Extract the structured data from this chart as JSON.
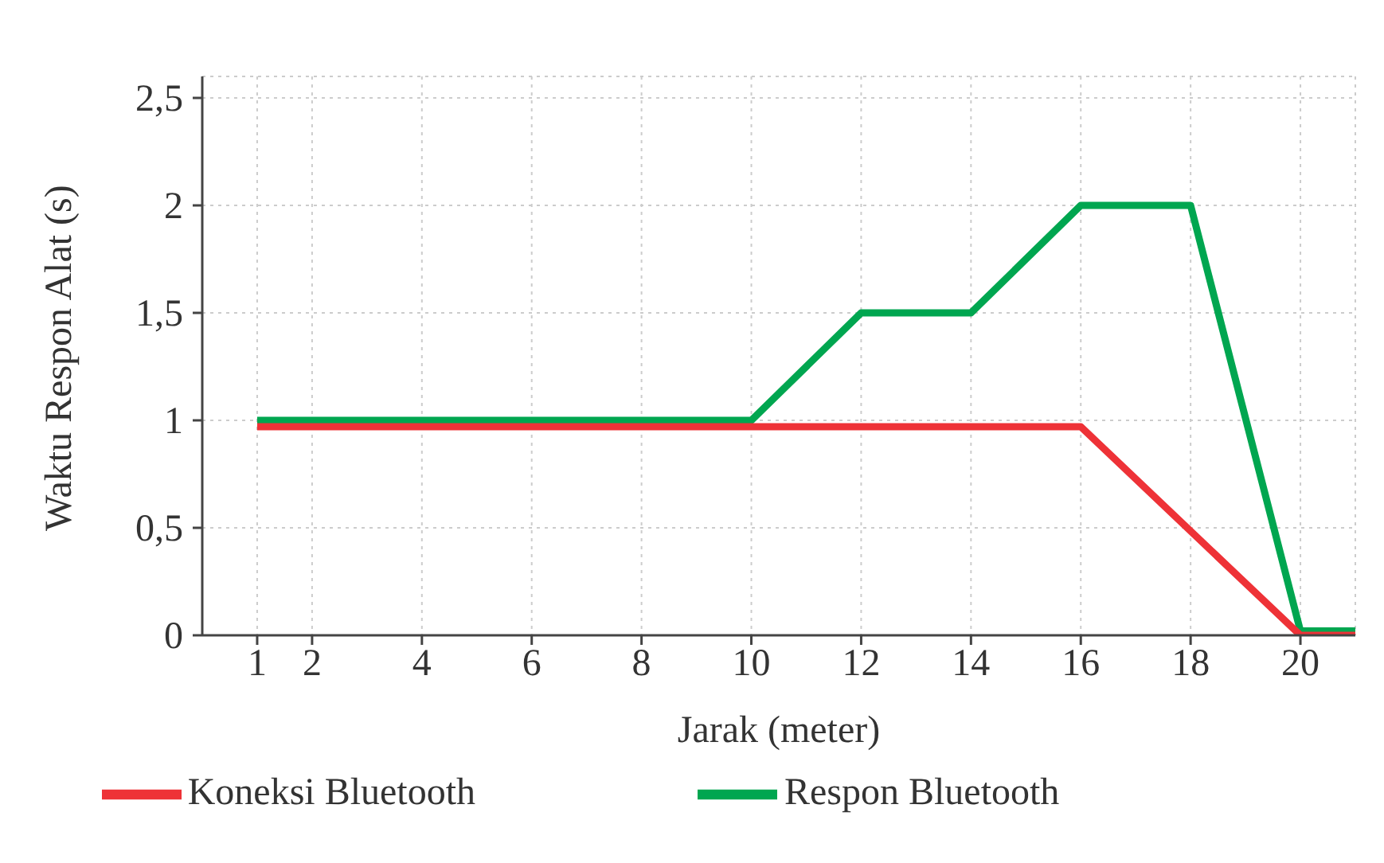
{
  "chart_data": {
    "type": "line",
    "xlabel": "Jarak (meter)",
    "ylabel": "Waktu Respon Alat (s)",
    "xlim": [
      0,
      21
    ],
    "xticks": [
      1,
      2,
      4,
      6,
      8,
      10,
      12,
      14,
      16,
      18,
      20
    ],
    "ylim": [
      0,
      2.6
    ],
    "yticks": [
      {
        "value": 0,
        "label": "0"
      },
      {
        "value": 0.5,
        "label": "0,5"
      },
      {
        "value": 1,
        "label": "1"
      },
      {
        "value": 1.5,
        "label": "1,5"
      },
      {
        "value": 2,
        "label": "2"
      },
      {
        "value": 2.5,
        "label": "2,5"
      }
    ],
    "grid": true,
    "legend": "bottom",
    "marker": "none",
    "line_style": "solid",
    "series": [
      {
        "name": "Respon Bluetooth",
        "color": "#00a650",
        "x": [
          1,
          10,
          12,
          14,
          16,
          18,
          20,
          21
        ],
        "values": [
          1,
          1,
          1.5,
          1.5,
          2,
          2,
          0.02,
          0.02
        ]
      },
      {
        "name": "Koneksi Bluetooth",
        "color": "#ee3237",
        "x": [
          1,
          16,
          20,
          21
        ],
        "values": [
          0.97,
          0.97,
          0,
          0
        ]
      }
    ]
  }
}
